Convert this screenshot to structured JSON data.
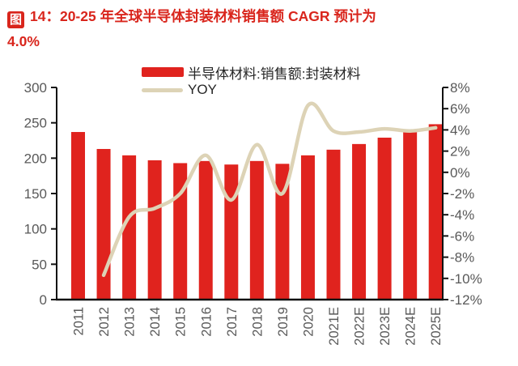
{
  "header": {
    "badge": "图",
    "line1": "14：20-25 年全球半导体封装材料销售额 CAGR 预计为",
    "line2": "4.0%"
  },
  "legend": {
    "bar_series_label": "半导体材料:销售额:封装材料",
    "line_series_label": "YOY"
  },
  "colors": {
    "title_red": "#d9251c",
    "bar_red": "#e0231e",
    "yoy_line": "#ddd3b6",
    "axis_line": "#111111",
    "tick_label": "#595959",
    "legend_text": "#262626"
  },
  "chart_data": {
    "type": "bar",
    "title": "20-25 年全球半导体封装材料销售额 CAGR 预计为 4.0%",
    "categories": [
      "2011",
      "2012",
      "2013",
      "2014",
      "2015",
      "2016",
      "2017",
      "2018",
      "2019",
      "2020",
      "2021E",
      "2022E",
      "2023E",
      "2024E",
      "2025E"
    ],
    "series": [
      {
        "name": "半导体材料:销售额:封装材料",
        "type": "bar",
        "axis": "left",
        "values": [
          237,
          213,
          204,
          197,
          193,
          196,
          191,
          196,
          192,
          204,
          212,
          220,
          229,
          238,
          248
        ]
      },
      {
        "name": "YOY",
        "type": "line",
        "axis": "right",
        "values": [
          null,
          -9.7,
          -4.2,
          -3.4,
          -2.0,
          1.6,
          -2.6,
          2.6,
          -2.0,
          6.3,
          3.9,
          3.8,
          4.1,
          3.9,
          4.2
        ]
      }
    ],
    "left_axis": {
      "min": 0,
      "max": 300,
      "step": 50,
      "tick_labels": [
        "300",
        "250",
        "200",
        "150",
        "100",
        "50",
        "0"
      ]
    },
    "right_axis": {
      "min": -12,
      "max": 8,
      "step": 2,
      "suffix": "%",
      "tick_labels": [
        "8%",
        "6%",
        "4%",
        "2%",
        "0%",
        "-2%",
        "-4%",
        "-6%",
        "-8%",
        "-10%",
        "-12%"
      ]
    },
    "grid": false,
    "legend_position": "top",
    "xlabel": "",
    "ylabel": ""
  }
}
